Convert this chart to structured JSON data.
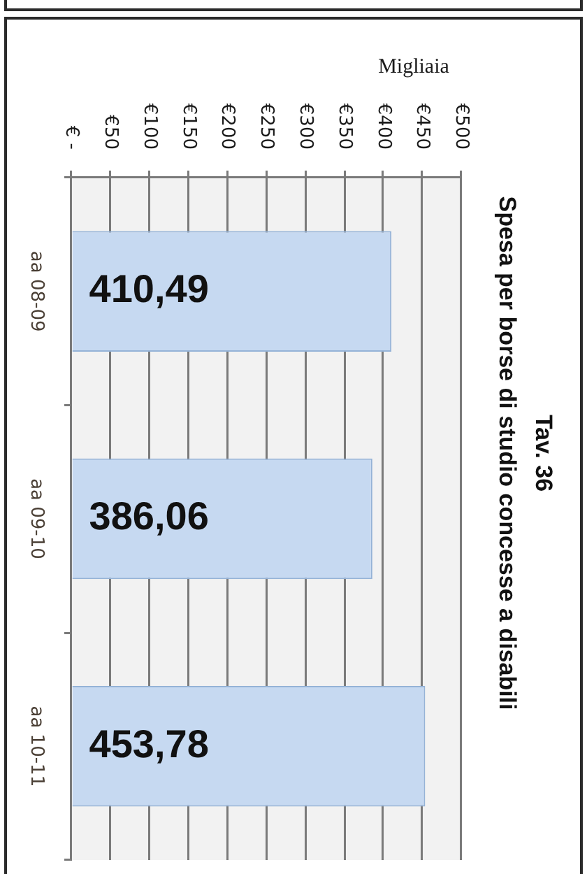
{
  "chart_data": {
    "type": "bar",
    "orientation": "horizontal",
    "title": "Tav. 36",
    "subtitle": "Spesa per borse di studio concesse a disabili",
    "xlabel": "Migliaia",
    "categories": [
      "aa 08-09",
      "aa 09-10",
      "aa 10-11"
    ],
    "values": [
      410.49,
      386.06,
      453.78
    ],
    "value_labels": [
      "410,49",
      "386,06",
      "453,78"
    ],
    "color": "#c6d9f1",
    "xlim": [
      0,
      500
    ],
    "xticks": [
      {
        "value": 0,
        "label": "€ -"
      },
      {
        "value": 50,
        "label": "€50"
      },
      {
        "value": 100,
        "label": "€100"
      },
      {
        "value": 150,
        "label": "€150"
      },
      {
        "value": 200,
        "label": "€200"
      },
      {
        "value": 250,
        "label": "€250"
      },
      {
        "value": 300,
        "label": "€300"
      },
      {
        "value": 350,
        "label": "€350"
      },
      {
        "value": 400,
        "label": "€400"
      },
      {
        "value": 450,
        "label": "€450"
      },
      {
        "value": 500,
        "label": "€500"
      }
    ],
    "grid": "x"
  }
}
